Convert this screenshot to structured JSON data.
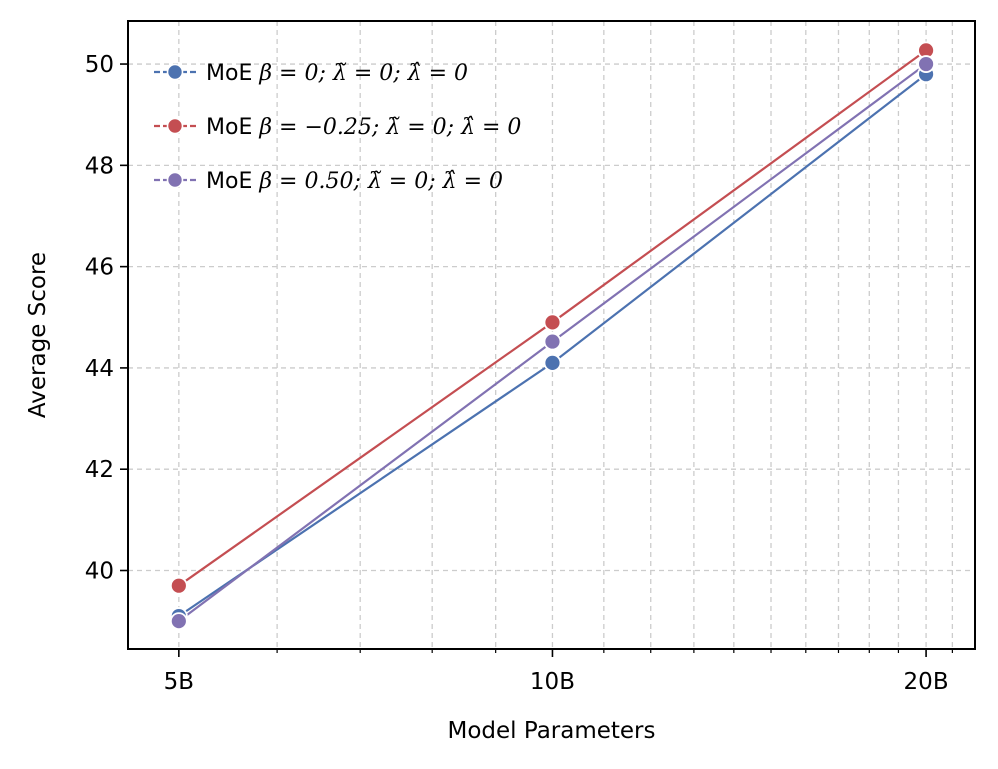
{
  "chart_data": {
    "type": "line",
    "xlabel": "Model Parameters",
    "ylabel": "Average Score",
    "x_scale": "log",
    "x": [
      5,
      10,
      20
    ],
    "x_tick_labels": [
      "5B",
      "10B",
      "20B"
    ],
    "xlim": [
      4.55,
      21.9
    ],
    "ylim": [
      38.45,
      50.85
    ],
    "y_ticks": [
      40,
      42,
      44,
      46,
      48,
      50
    ],
    "grid": true,
    "legend_position": "top-left",
    "series": [
      {
        "name": "MoE β = 0; λ̃ = 0; λ̂ = 0",
        "name_prefix": "MoE ",
        "name_math": "β = 0;  λ̃ = 0;  λ̂ = 0",
        "color": "#4c72b0",
        "values": [
          39.1,
          44.1,
          49.8
        ]
      },
      {
        "name": "MoE β = −0.25; λ̃ = 0; λ̂ = 0",
        "name_prefix": "MoE ",
        "name_math": "β = −0.25;  λ̃ = 0;  λ̂ = 0",
        "color": "#c44e52",
        "values": [
          39.7,
          44.9,
          50.27
        ]
      },
      {
        "name": "MoE β = 0.50; λ̃ = 0; λ̂ = 0",
        "name_prefix": "MoE ",
        "name_math": "β = 0.50;  λ̃ = 0;  λ̂ = 0",
        "color": "#8172b2",
        "values": [
          39.0,
          44.52,
          50.0
        ]
      }
    ]
  }
}
